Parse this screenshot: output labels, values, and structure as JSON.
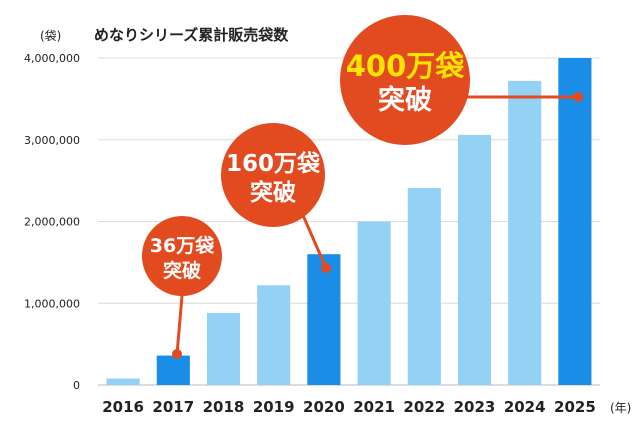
{
  "chart_data": {
    "type": "bar",
    "title": "めなりシリーズ累計販売袋数",
    "ylabel": "(袋)",
    "xlabel": "(年)",
    "categories": [
      "2016",
      "2017",
      "2018",
      "2019",
      "2020",
      "2021",
      "2022",
      "2023",
      "2024",
      "2025"
    ],
    "values": [
      80000,
      360000,
      880000,
      1220000,
      1600000,
      2000000,
      2410000,
      3060000,
      3720000,
      4000000
    ],
    "highlight": [
      "2017",
      "2020",
      "2025"
    ],
    "ylim": [
      0,
      4000000
    ],
    "yticks": [
      {
        "value": 0,
        "label": "0"
      },
      {
        "value": 1000000,
        "label": "1,000,000"
      },
      {
        "value": 2000000,
        "label": "2,000,000"
      },
      {
        "value": 3000000,
        "label": "3,000,000"
      },
      {
        "value": 4000000,
        "label": "4,000,000"
      }
    ],
    "grid": true,
    "colors": {
      "bar": "#94d2f5",
      "bar_highlight": "#1a8ee6",
      "callout": "#e24a1f",
      "callout_text": "#ffffff",
      "callout_accent": "#ffe400",
      "text": "#222222",
      "grid": "#dcdcdc"
    },
    "annotations": [
      {
        "category": "2017",
        "value": 360000,
        "line1": "36万袋",
        "line2": "突破",
        "accent": false
      },
      {
        "category": "2020",
        "value": 1600000,
        "line1": "160万袋",
        "line2": "突破",
        "accent": false
      },
      {
        "category": "2025",
        "value": 4000000,
        "line1": "400万袋",
        "line2": "突破",
        "accent": true
      }
    ]
  }
}
